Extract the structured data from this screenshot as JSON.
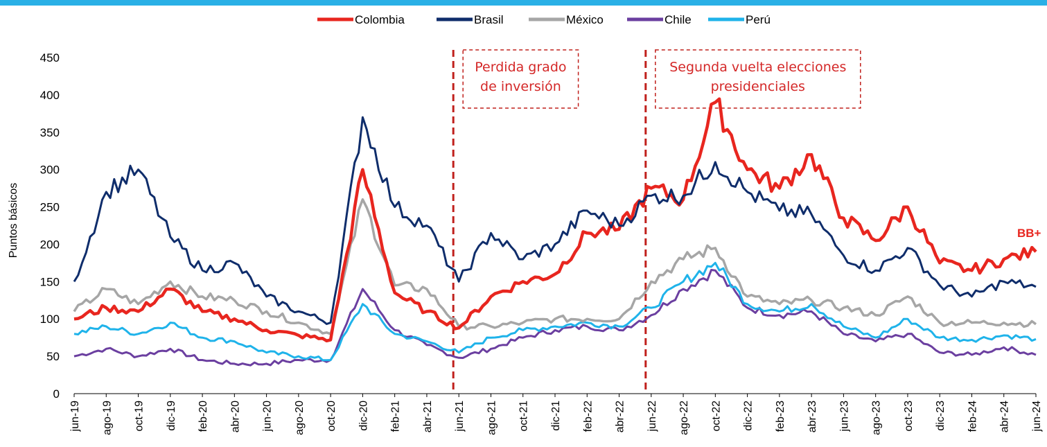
{
  "chart_data": {
    "type": "line",
    "title": "",
    "xlabel": "",
    "ylabel": "Puntos básicos",
    "ylim": [
      0,
      450
    ],
    "yticks": [
      0,
      50,
      100,
      150,
      200,
      250,
      300,
      350,
      400,
      450
    ],
    "grid": false,
    "legend_position": "top-center",
    "x": [
      "jun-19",
      "ago-19",
      "oct-19",
      "dic-19",
      "feb-20",
      "abr-20",
      "jun-20",
      "ago-20",
      "oct-20",
      "dic-20",
      "feb-21",
      "abr-21",
      "jun-21",
      "ago-21",
      "oct-21",
      "dic-21",
      "feb-22",
      "abr-22",
      "jun-22",
      "ago-22",
      "oct-22",
      "dic-22",
      "feb-23",
      "abr-23",
      "jun-23",
      "ago-23",
      "oct-23",
      "dic-23",
      "feb-24",
      "abr-24",
      "jun-24"
    ],
    "series": [
      {
        "name": "Colombia",
        "color": "#e8261f",
        "width": 4.5,
        "values": [
          100,
          115,
          110,
          140,
          110,
          100,
          85,
          78,
          72,
          300,
          135,
          110,
          88,
          130,
          150,
          160,
          215,
          220,
          275,
          260,
          390,
          300,
          275,
          320,
          235,
          205,
          250,
          175,
          165,
          180,
          190
        ]
      },
      {
        "name": "Brasil",
        "color": "#0f2d6b",
        "width": 3,
        "values": [
          150,
          270,
          300,
          210,
          165,
          175,
          130,
          110,
          95,
          370,
          250,
          225,
          150,
          215,
          180,
          200,
          245,
          225,
          265,
          265,
          310,
          270,
          245,
          240,
          185,
          165,
          195,
          145,
          130,
          150,
          143
        ]
      },
      {
        "name": "México",
        "color": "#a6a6a6",
        "width": 3.5,
        "values": [
          110,
          140,
          120,
          150,
          130,
          125,
          110,
          95,
          80,
          260,
          145,
          140,
          90,
          90,
          95,
          100,
          100,
          100,
          150,
          180,
          195,
          130,
          120,
          125,
          115,
          105,
          130,
          95,
          95,
          95,
          93
        ]
      },
      {
        "name": "Chile",
        "color": "#6b3fa0",
        "width": 3,
        "values": [
          50,
          60,
          50,
          60,
          45,
          40,
          40,
          45,
          45,
          140,
          85,
          65,
          48,
          60,
          75,
          85,
          90,
          85,
          105,
          140,
          165,
          115,
          105,
          110,
          80,
          70,
          80,
          55,
          52,
          62,
          52
        ]
      },
      {
        "name": "Perú",
        "color": "#1fb3ea",
        "width": 3,
        "values": [
          80,
          90,
          80,
          95,
          75,
          70,
          55,
          50,
          45,
          120,
          80,
          70,
          55,
          75,
          85,
          90,
          95,
          90,
          115,
          150,
          175,
          120,
          110,
          120,
          90,
          75,
          100,
          75,
          72,
          78,
          73
        ]
      }
    ],
    "annotations": [
      {
        "text_lines": [
          "Perdida grado",
          "de inversión"
        ],
        "x": "jun-21"
      },
      {
        "text_lines": [
          "Segunda vuelta elecciones",
          "presidenciales"
        ],
        "x": "jun-22"
      }
    ],
    "end_label": "BB+"
  }
}
